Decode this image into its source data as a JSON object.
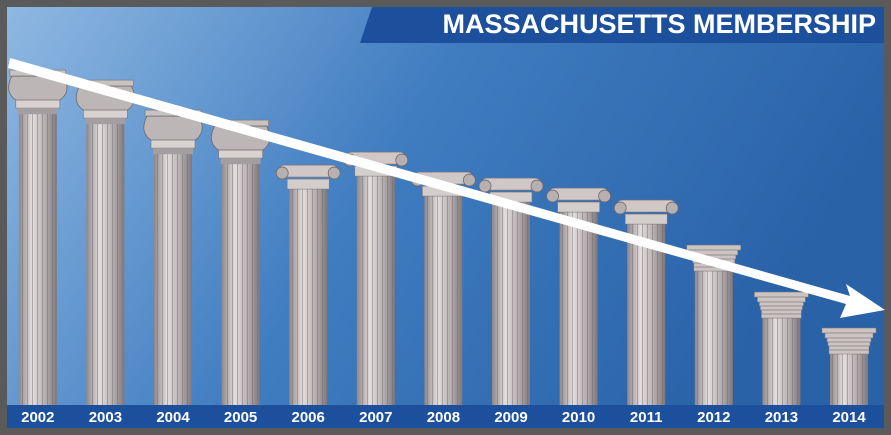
{
  "chart_data": {
    "type": "bar",
    "title": "MASSACHUSETTS MEMBERSHIP",
    "categories": [
      "2002",
      "2003",
      "2004",
      "2005",
      "2006",
      "2007",
      "2008",
      "2009",
      "2010",
      "2011",
      "2012",
      "2013",
      "2014"
    ],
    "values": [
      335,
      325,
      295,
      285,
      240,
      253,
      233,
      227,
      217,
      205,
      160,
      113,
      77
    ],
    "color": "#b9b3b4"
  }
}
